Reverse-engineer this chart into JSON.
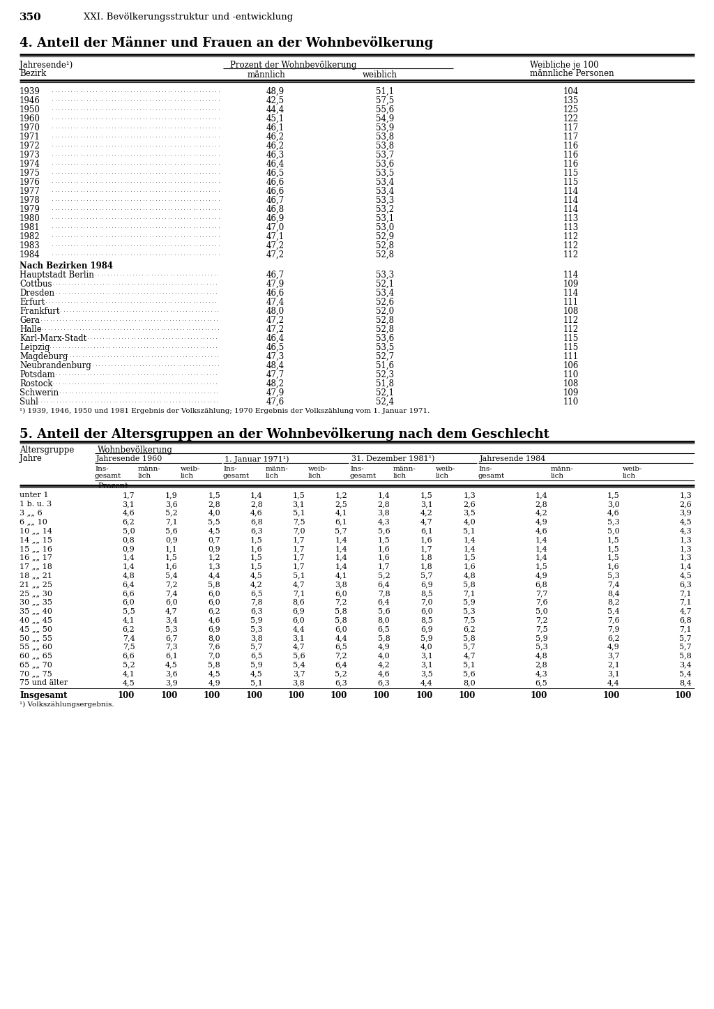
{
  "page_number": "350",
  "page_header": "XXI. Bevölkerungsstruktur und -entwicklung",
  "section4_title": "4. Anteil der Männer und Frauen an der Wohnbevölkerung",
  "section4_rows": [
    [
      "1939",
      "48,9",
      "51,1",
      "104"
    ],
    [
      "1946",
      "42,5",
      "57,5",
      "135"
    ],
    [
      "1950",
      "44,4",
      "55,6",
      "125"
    ],
    [
      "1960",
      "45,1",
      "54,9",
      "122"
    ],
    [
      "1970",
      "46,1",
      "53,9",
      "117"
    ],
    [
      "1971",
      "46,2",
      "53,8",
      "117"
    ],
    [
      "1972",
      "46,2",
      "53,8",
      "116"
    ],
    [
      "1973",
      "46,3",
      "53,7",
      "116"
    ],
    [
      "1974",
      "46,4",
      "53,6",
      "116"
    ],
    [
      "1975",
      "46,5",
      "53,5",
      "115"
    ],
    [
      "1976",
      "46,6",
      "53,4",
      "115"
    ],
    [
      "1977",
      "46,6",
      "53,4",
      "114"
    ],
    [
      "1978",
      "46,7",
      "53,3",
      "114"
    ],
    [
      "1979",
      "46,8",
      "53,2",
      "114"
    ],
    [
      "1980",
      "46,9",
      "53,1",
      "113"
    ],
    [
      "1981",
      "47,0",
      "53,0",
      "113"
    ],
    [
      "1982",
      "47,1",
      "52,9",
      "112"
    ],
    [
      "1983",
      "47,2",
      "52,8",
      "112"
    ],
    [
      "1984",
      "47,2",
      "52,8",
      "112"
    ]
  ],
  "section4_bezirk_rows": [
    [
      "Hauptstadt Berlin",
      "46,7",
      "53,3",
      "114"
    ],
    [
      "Cottbus",
      "47,9",
      "52,1",
      "109"
    ],
    [
      "Dresden",
      "46,6",
      "53,4",
      "114"
    ],
    [
      "Erfurt",
      "47,4",
      "52,6",
      "111"
    ],
    [
      "Frankfurt",
      "48,0",
      "52,0",
      "108"
    ],
    [
      "Gera",
      "47,2",
      "52,8",
      "112"
    ],
    [
      "Halle",
      "47,2",
      "52,8",
      "112"
    ],
    [
      "Karl-Marx-Stadt",
      "46,4",
      "53,6",
      "115"
    ],
    [
      "Leipzig",
      "46,5",
      "53,5",
      "115"
    ],
    [
      "Magdeburg",
      "47,3",
      "52,7",
      "111"
    ],
    [
      "Neubrandenburg",
      "48,4",
      "51,6",
      "106"
    ],
    [
      "Potsdam",
      "47,7",
      "52,3",
      "110"
    ],
    [
      "Rostock",
      "48,2",
      "51,8",
      "108"
    ],
    [
      "Schwerin",
      "47,9",
      "52,1",
      "109"
    ],
    [
      "Suhl",
      "47,6",
      "52,4",
      "110"
    ]
  ],
  "section4_footnote": "¹) 1939, 1946, 1950 und 1981 Ergebnis der Volkszählung; 1970 Ergebnis der Volkszählung vom 1. Januar 1971.",
  "section5_title": "5. Anteil der Altersgruppen an der Wohnbevölkerung nach dem Geschlecht",
  "section5_sub_headers": [
    "Jahresende 1960",
    "1. Januar 1971¹)",
    "31. Dezember 1981¹)",
    "Jahresende 1984"
  ],
  "section5_rows": [
    [
      "unter 1",
      "1,7",
      "1,9",
      "1,5",
      "1,4",
      "1,5",
      "1,2",
      "1,4",
      "1,5",
      "1,3",
      "1,4",
      "1,5",
      "1,3"
    ],
    [
      "1 b. u. 3",
      "3,1",
      "3,6",
      "2,8",
      "2,8",
      "3,1",
      "2,5",
      "2,8",
      "3,1",
      "2,6",
      "2,8",
      "3,0",
      "2,6"
    ],
    [
      "3 „„ 6",
      "4,6",
      "5,2",
      "4,0",
      "4,6",
      "5,1",
      "4,1",
      "3,8",
      "4,2",
      "3,5",
      "4,2",
      "4,6",
      "3,9"
    ],
    [
      "6 „„ 10",
      "6,2",
      "7,1",
      "5,5",
      "6,8",
      "7,5",
      "6,1",
      "4,3",
      "4,7",
      "4,0",
      "4,9",
      "5,3",
      "4,5"
    ],
    [
      "10 „„ 14",
      "5,0",
      "5,6",
      "4,5",
      "6,3",
      "7,0",
      "5,7",
      "5,6",
      "6,1",
      "5,1",
      "4,6",
      "5,0",
      "4,3"
    ],
    [
      "14 „„ 15",
      "0,8",
      "0,9",
      "0,7",
      "1,5",
      "1,7",
      "1,4",
      "1,5",
      "1,6",
      "1,4",
      "1,4",
      "1,5",
      "1,3"
    ],
    [
      "15 „„ 16",
      "0,9",
      "1,1",
      "0,9",
      "1,6",
      "1,7",
      "1,4",
      "1,6",
      "1,7",
      "1,4",
      "1,4",
      "1,5",
      "1,3"
    ],
    [
      "16 „„ 17",
      "1,4",
      "1,5",
      "1,2",
      "1,5",
      "1,7",
      "1,4",
      "1,6",
      "1,8",
      "1,5",
      "1,4",
      "1,5",
      "1,3"
    ],
    [
      "17 „„ 18",
      "1,4",
      "1,6",
      "1,3",
      "1,5",
      "1,7",
      "1,4",
      "1,7",
      "1,8",
      "1,6",
      "1,5",
      "1,6",
      "1,4"
    ],
    [
      "18 „„ 21",
      "4,8",
      "5,4",
      "4,4",
      "4,5",
      "5,1",
      "4,1",
      "5,2",
      "5,7",
      "4,8",
      "4,9",
      "5,3",
      "4,5"
    ],
    [
      "21 „„ 25",
      "6,4",
      "7,2",
      "5,8",
      "4,2",
      "4,7",
      "3,8",
      "6,4",
      "6,9",
      "5,8",
      "6,8",
      "7,4",
      "6,3"
    ],
    [
      "25 „„ 30",
      "6,6",
      "7,4",
      "6,0",
      "6,5",
      "7,1",
      "6,0",
      "7,8",
      "8,5",
      "7,1",
      "7,7",
      "8,4",
      "7,1"
    ],
    [
      "30 „„ 35",
      "6,0",
      "6,0",
      "6,0",
      "7,8",
      "8,6",
      "7,2",
      "6,4",
      "7,0",
      "5,9",
      "7,6",
      "8,2",
      "7,1"
    ],
    [
      "35 „„ 40",
      "5,5",
      "4,7",
      "6,2",
      "6,3",
      "6,9",
      "5,8",
      "5,6",
      "6,0",
      "5,3",
      "5,0",
      "5,4",
      "4,7"
    ],
    [
      "40 „„ 45",
      "4,1",
      "3,4",
      "4,6",
      "5,9",
      "6,0",
      "5,8",
      "8,0",
      "8,5",
      "7,5",
      "7,2",
      "7,6",
      "6,8"
    ],
    [
      "45 „„ 50",
      "6,2",
      "5,3",
      "6,9",
      "5,3",
      "4,4",
      "6,0",
      "6,5",
      "6,9",
      "6,2",
      "7,5",
      "7,9",
      "7,1"
    ],
    [
      "50 „„ 55",
      "7,4",
      "6,7",
      "8,0",
      "3,8",
      "3,1",
      "4,4",
      "5,8",
      "5,9",
      "5,8",
      "5,9",
      "6,2",
      "5,7"
    ],
    [
      "55 „„ 60",
      "7,5",
      "7,3",
      "7,6",
      "5,7",
      "4,7",
      "6,5",
      "4,9",
      "4,0",
      "5,7",
      "5,3",
      "4,9",
      "5,7"
    ],
    [
      "60 „„ 65",
      "6,6",
      "6,1",
      "7,0",
      "6,5",
      "5,6",
      "7,2",
      "4,0",
      "3,1",
      "4,7",
      "4,8",
      "3,7",
      "5,8"
    ],
    [
      "65 „„ 70",
      "5,2",
      "4,5",
      "5,8",
      "5,9",
      "5,4",
      "6,4",
      "4,2",
      "3,1",
      "5,1",
      "2,8",
      "2,1",
      "3,4"
    ],
    [
      "70 „„ 75",
      "4,1",
      "3,6",
      "4,5",
      "4,5",
      "3,7",
      "5,2",
      "4,6",
      "3,5",
      "5,6",
      "4,3",
      "3,1",
      "5,4"
    ],
    [
      "75 und älter",
      "4,5",
      "3,9",
      "4,9",
      "5,1",
      "3,8",
      "6,3",
      "6,3",
      "4,4",
      "8,0",
      "6,5",
      "4,4",
      "8,4"
    ]
  ],
  "section5_total_row": [
    "Insgesamt",
    "100",
    "100",
    "100",
    "100",
    "100",
    "100",
    "100",
    "100",
    "100",
    "100",
    "100",
    "100"
  ],
  "section5_footnote": "¹) Volkszählungsergebnis."
}
